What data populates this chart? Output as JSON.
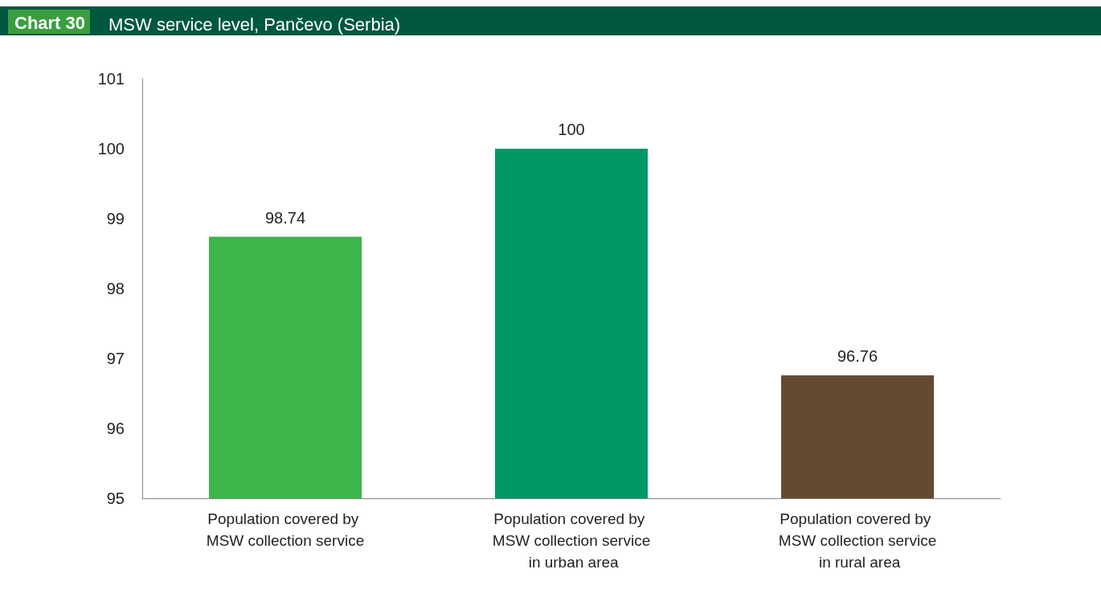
{
  "chart_data": {
    "type": "bar",
    "title": "MSW service level, Pančevo (Serbia)",
    "annotations": [
      "Chart 30"
    ],
    "categories": [
      "Population covered by MSW collection service",
      "Population covered by MSW collection service in urban area",
      "Population covered by MSW collection service in rural area"
    ],
    "values": [
      98.74,
      100,
      96.76
    ],
    "colors": [
      "#3cb54a",
      "#009966",
      "#654a32"
    ],
    "ylim": [
      95,
      101
    ],
    "yticks": [
      95,
      96,
      97,
      98,
      99,
      100,
      101
    ],
    "grid": false,
    "data_labels": true
  }
}
